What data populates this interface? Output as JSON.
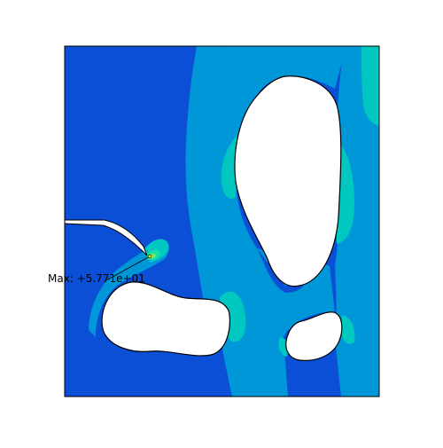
{
  "annotation": {
    "max_label": "Max: +5.771e+01"
  },
  "colors": {
    "background": "#ffffff",
    "contour_level_1": "#0a4fd6",
    "contour_level_2": "#0097d9",
    "contour_level_3": "#00c8c0",
    "contour_level_4": "#14e0a8",
    "contour_level_5": "#6ee86a",
    "max_point": "#f4f000",
    "outline": "#000000",
    "hole": "#ffffff"
  }
}
